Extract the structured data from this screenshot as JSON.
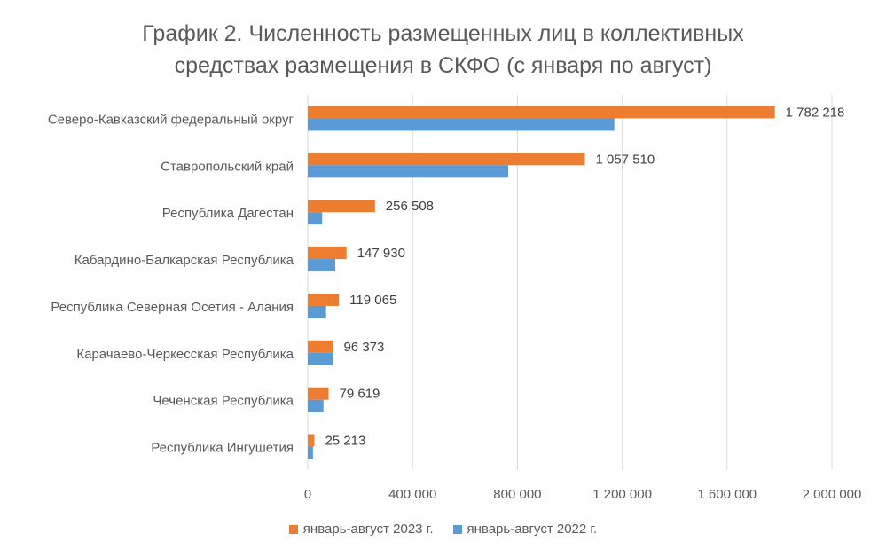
{
  "chart_data": {
    "type": "bar",
    "orientation": "horizontal",
    "title_line1": "График 2. Численность размещенных лиц в коллективных",
    "title_line2": "средствах размещения в СКФО (с января по август)",
    "categories": [
      "Северо-Кавказский федеральный округ",
      "Ставропольский край",
      "Республика Дагестан",
      "Кабардино-Балкарская Республика",
      "Республика Северная Осетия - Алания",
      "Карачаево-Черкесская Республика",
      "Чеченская Республика",
      "Республика Ингушетия"
    ],
    "series": [
      {
        "name": "январь-август 2023 г.",
        "color": "#ED7D31",
        "values": [
          1782218,
          1057510,
          256508,
          147930,
          119065,
          96373,
          79619,
          25213
        ],
        "labels": [
          "1 782 218",
          "1 057 510",
          "256 508",
          "147 930",
          "119 065",
          "96 373",
          "79 619",
          "25 213"
        ]
      },
      {
        "name": "январь-август 2022 г.",
        "color": "#5B9BD5",
        "values": [
          1170000,
          765000,
          55000,
          105000,
          70000,
          95000,
          60000,
          20000
        ]
      }
    ],
    "xlim": [
      0,
      2000000
    ],
    "xticks": [
      0,
      400000,
      800000,
      1200000,
      1600000,
      2000000
    ],
    "xtick_labels": [
      "0",
      "400 000",
      "800 000",
      "1 200 000",
      "1 600 000",
      "2 000 000"
    ],
    "grid": true,
    "legend_position": "bottom"
  }
}
